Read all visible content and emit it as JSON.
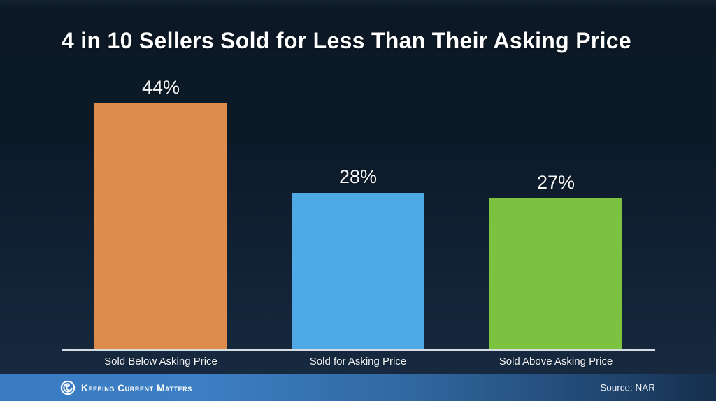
{
  "slide": {
    "title": "4 in 10 Sellers Sold for Less Than Their Asking Price"
  },
  "chart_data": {
    "type": "bar",
    "title": "4 in 10 Sellers Sold for Less Than Their Asking Price",
    "categories": [
      "Sold Below Asking Price",
      "Sold for Asking Price",
      "Sold Above Asking Price"
    ],
    "values": [
      44,
      28,
      27
    ],
    "value_labels": [
      "44%",
      "28%",
      "27%"
    ],
    "colors": [
      "#dd8c4b",
      "#4ea9e4",
      "#7ac23f"
    ],
    "xlabel": "",
    "ylabel": "",
    "ylim": [
      0,
      48
    ],
    "grid": false,
    "legend": "none",
    "axis_line_color": "#d7dce1",
    "background_top": "#0c1824",
    "background_bottom": "#182b42"
  },
  "footer": {
    "brand": "Keeping Current Matters",
    "brand_icon": "kcm-swirl-logo-icon",
    "source": "Source: NAR",
    "bar_color_left": "#3a7cc1",
    "bar_color_right": "#152f4c"
  }
}
